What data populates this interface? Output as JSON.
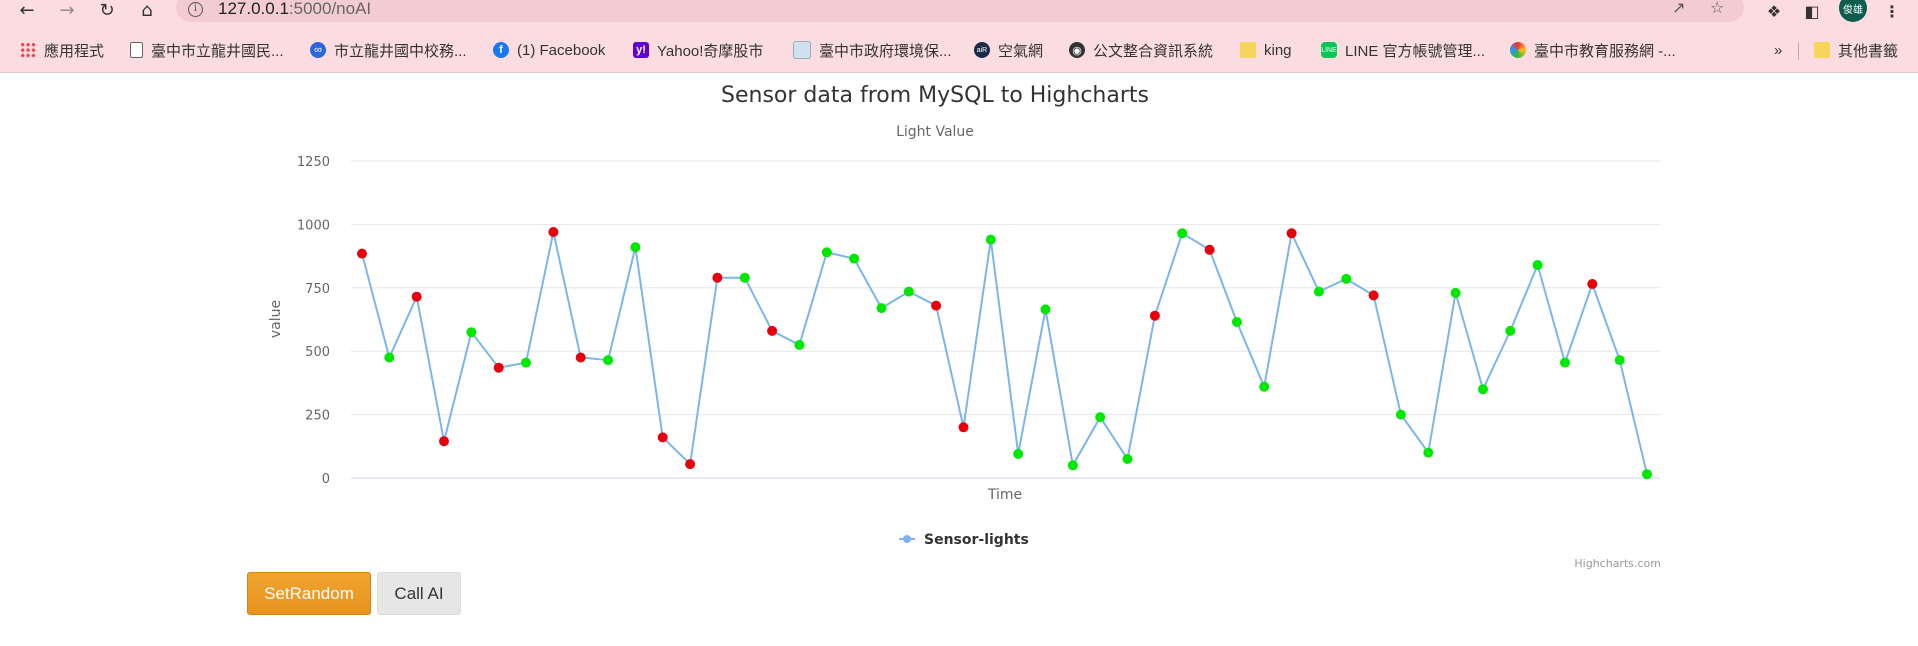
{
  "browser": {
    "url_host": "127.0.0.1",
    "url_path": ":5000/noAI",
    "avatar_text": "俊雄",
    "bookmarks": [
      {
        "label": "應用程式",
        "icon": "apps-icon"
      },
      {
        "label": "臺中市立龍井國民...",
        "icon": "page-icon"
      },
      {
        "label": "市立龍井國中校務...",
        "icon": "school-icon"
      },
      {
        "label": "(1) Facebook",
        "icon": "facebook-icon"
      },
      {
        "label": "Yahoo!奇摩股市",
        "icon": "yahoo-icon"
      },
      {
        "label": "臺中市政府環境保...",
        "icon": "document-icon"
      },
      {
        "label": "空氣網",
        "icon": "air-icon"
      },
      {
        "label": "公文整合資訊系統",
        "icon": "globe-icon"
      },
      {
        "label": "king",
        "icon": "folder-icon"
      },
      {
        "label": "LINE 官方帳號管理...",
        "icon": "line-icon"
      },
      {
        "label": "臺中市教育服務網 -...",
        "icon": "edu-icon"
      }
    ],
    "bookmarks_overflow": "»",
    "other_bookmarks": "其他書籤"
  },
  "chart_data": {
    "type": "line",
    "title": "Sensor data from MySQL to Highcharts",
    "subtitle": "Light Value",
    "xlabel": "Time",
    "ylabel": "value",
    "ylim": [
      0,
      1250
    ],
    "yticks": [
      0,
      250,
      500,
      750,
      1000,
      1250
    ],
    "grid": true,
    "legend_placement": "bottom-center",
    "credits": "Highcharts.com",
    "line_color": "#7cb5ec",
    "marker_colors": {
      "high": "#e8000b",
      "low": "#00e800"
    },
    "series": [
      {
        "name": "Sensor-lights",
        "values": [
          885,
          475,
          715,
          145,
          575,
          435,
          455,
          970,
          475,
          465,
          910,
          160,
          55,
          790,
          790,
          580,
          525,
          890,
          865,
          670,
          735,
          680,
          200,
          940,
          95,
          665,
          50,
          240,
          75,
          640,
          965,
          900,
          615,
          360,
          965,
          735,
          785,
          720,
          250,
          100,
          730,
          350,
          580,
          840,
          455,
          765,
          465,
          15
        ],
        "marker": [
          "high",
          "low",
          "high",
          "high",
          "low",
          "high",
          "low",
          "high",
          "high",
          "low",
          "low",
          "high",
          "high",
          "high",
          "low",
          "high",
          "low",
          "low",
          "low",
          "low",
          "low",
          "high",
          "high",
          "low",
          "low",
          "low",
          "low",
          "low",
          "low",
          "high",
          "low",
          "high",
          "low",
          "low",
          "high",
          "low",
          "low",
          "high",
          "low",
          "low",
          "low",
          "low",
          "low",
          "low",
          "low",
          "high",
          "low",
          "low"
        ]
      }
    ]
  },
  "buttons": {
    "set_random": "SetRandom",
    "call_ai": "Call AI"
  }
}
